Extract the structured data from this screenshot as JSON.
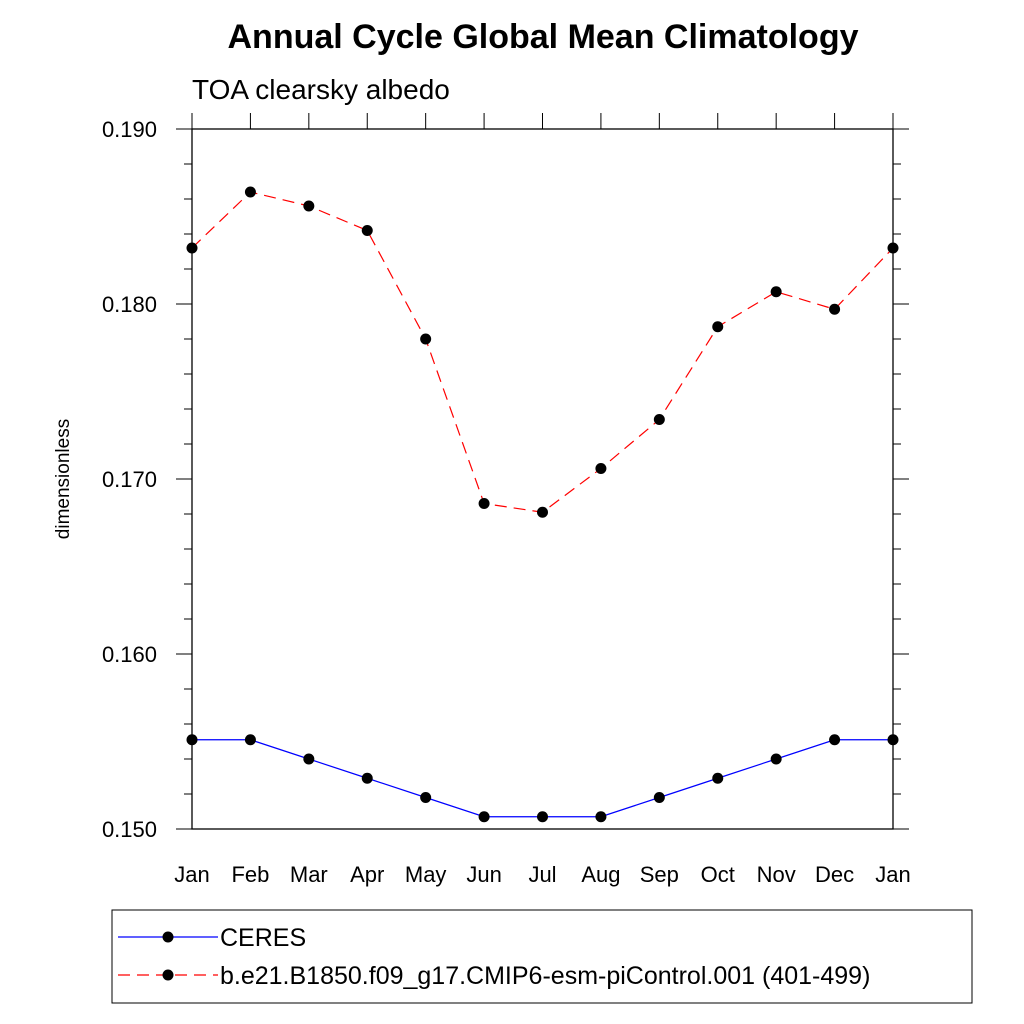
{
  "chart_data": {
    "type": "line",
    "title": "Annual Cycle Global Mean Climatology",
    "subtitle": "TOA clearsky albedo",
    "ylabel": "dimensionless",
    "xlabel": "",
    "categories": [
      "Jan",
      "Feb",
      "Mar",
      "Apr",
      "May",
      "Jun",
      "Jul",
      "Aug",
      "Sep",
      "Oct",
      "Nov",
      "Dec",
      "Jan"
    ],
    "ylim": [
      0.15,
      0.19
    ],
    "yticks": [
      "0.150",
      "0.160",
      "0.170",
      "0.180",
      "0.190"
    ],
    "grid": false,
    "legend_position": "bottom",
    "series": [
      {
        "name": "CERES",
        "color": "#0000ff",
        "line_style": "solid",
        "marker": "filled-circle",
        "values": [
          0.1551,
          0.1551,
          0.154,
          0.1529,
          0.1518,
          0.1507,
          0.1507,
          0.1507,
          0.1518,
          0.1529,
          0.154,
          0.1551,
          0.1551
        ]
      },
      {
        "name": "b.e21.B1850.f09_g17.CMIP6-esm-piControl.001 (401-499)",
        "color": "#ff0000",
        "line_style": "dashed",
        "marker": "filled-circle",
        "values": [
          0.1832,
          0.1864,
          0.1856,
          0.1842,
          0.178,
          0.1686,
          0.1681,
          0.1706,
          0.1734,
          0.1787,
          0.1807,
          0.1797,
          0.1832
        ]
      }
    ]
  }
}
